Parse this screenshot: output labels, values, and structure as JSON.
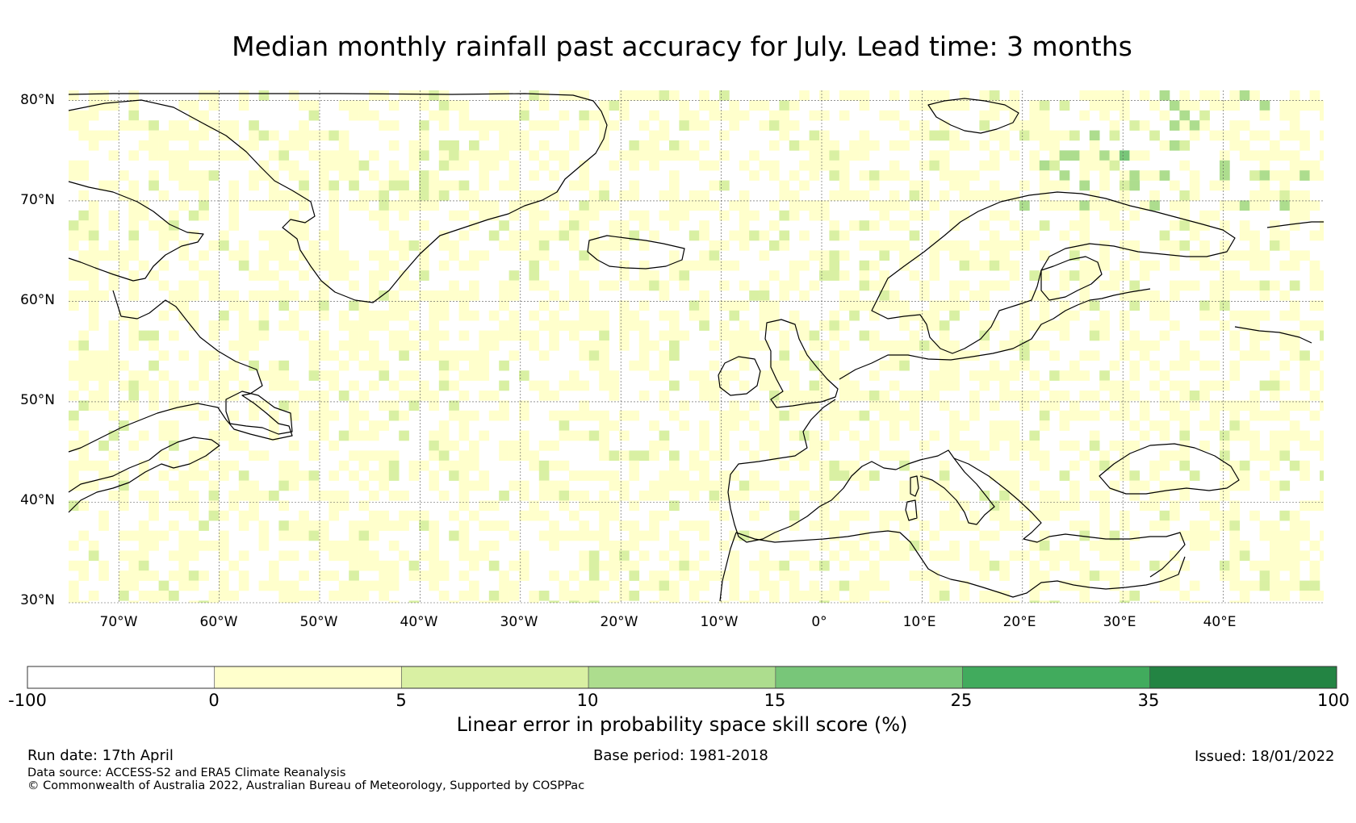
{
  "title": "Median monthly rainfall past accuracy for July. Lead time: 3 months",
  "map": {
    "lon_range": [
      -75,
      50
    ],
    "lat_range": [
      30,
      81
    ],
    "lat_ticks": [
      "80°N",
      "70°N",
      "60°N",
      "50°N",
      "40°N",
      "30°N"
    ],
    "lon_ticks": [
      "70°W",
      "60°W",
      "50°W",
      "40°W",
      "30°W",
      "20°W",
      "10°W",
      "0°",
      "10°E",
      "20°E",
      "30°E",
      "40°E"
    ]
  },
  "colorbar": {
    "label": "Linear error in probability space skill score (%)",
    "ticks": [
      "-100",
      "0",
      "5",
      "10",
      "15",
      "25",
      "35",
      "100"
    ],
    "colors": [
      "#ffffff",
      "#ffffcc",
      "#d9f0a3",
      "#addd8e",
      "#78c679",
      "#41ab5d",
      "#238443"
    ]
  },
  "footer": {
    "run_date": "Run date: 17th April",
    "base_period": "Base period: 1981-2018",
    "issued": "Issued: 18/01/2022",
    "data_source": "Data source: ACCESS-S2 and ERA5 Climate Reanalysis",
    "copyright": "© Commonwealth of Australia 2022, Australian Bureau of Meteorology, Supported by COSPPac"
  }
}
